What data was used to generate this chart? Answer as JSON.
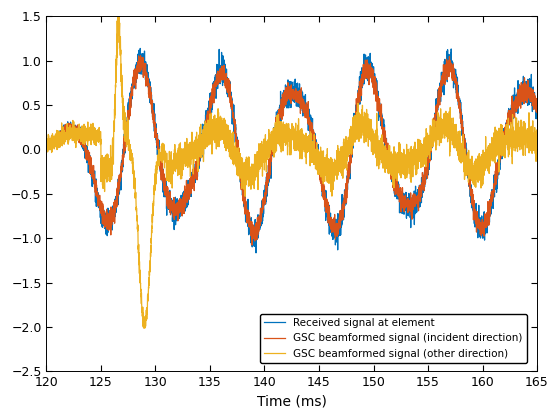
{
  "xlim": [
    120,
    165
  ],
  "ylim": [
    -2.5,
    1.5
  ],
  "xlabel": "Time (ms)",
  "xticks": [
    120,
    125,
    130,
    135,
    140,
    145,
    150,
    155,
    160,
    165
  ],
  "yticks": [
    -2.5,
    -2,
    -1.5,
    -1,
    -0.5,
    0,
    0.5,
    1,
    1.5
  ],
  "color_blue": "#0072BD",
  "color_orange": "#D95319",
  "color_yellow": "#EDB120",
  "legend_labels": [
    "Received signal at element",
    "GSC beamformed signal (incident direction)",
    "GSC beamformed signal (other direction)"
  ],
  "figsize": [
    5.6,
    4.2
  ],
  "dpi": 100,
  "t_start": 120,
  "t_end": 165,
  "n_points": 4500,
  "freq_main": 0.143,
  "freq_mod": 0.04,
  "seed": 7
}
